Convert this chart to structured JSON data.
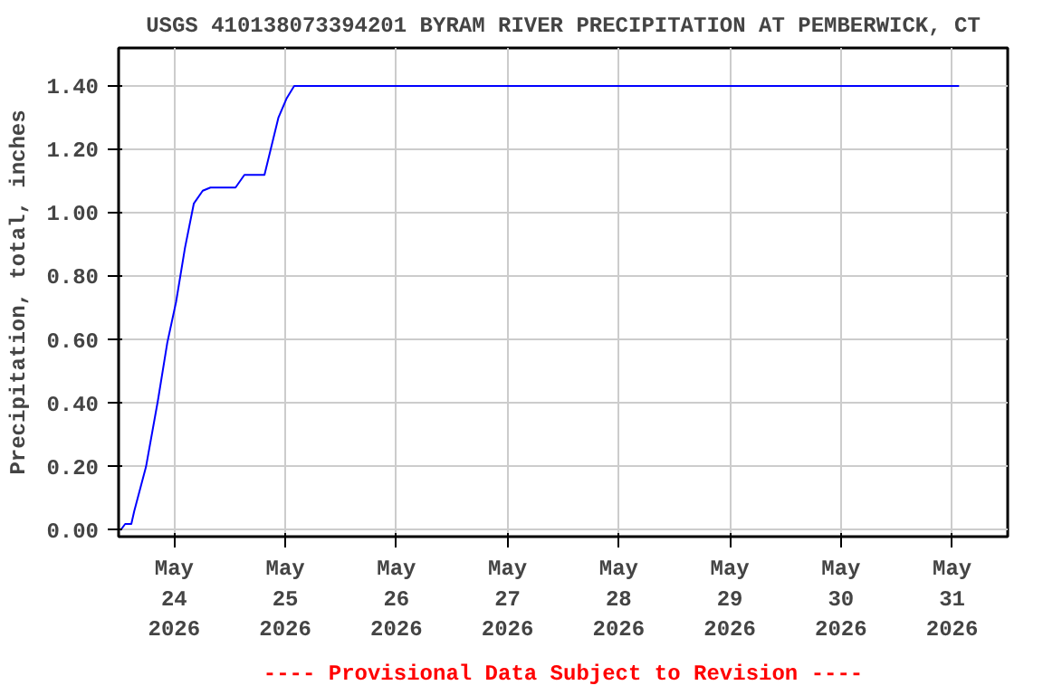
{
  "chart_data": {
    "type": "line",
    "title": "USGS 410138073394201 BYRAM RIVER PRECIPITATION AT PEMBERWICK, CT",
    "ylabel": "Precipitation, total, inches",
    "annotations": [
      "---- Provisional Data Subject to Revision ----"
    ],
    "series": [
      {
        "color": "#0000ff",
        "x": [
          "2026-05-23T12:24",
          "2026-05-23T13:25",
          "2026-05-23T14:45",
          "2026-05-23T15:22",
          "2026-05-23T17:55",
          "2026-05-23T20:30",
          "2026-05-23T22:30",
          "2026-05-24T00:25",
          "2026-05-24T02:20",
          "2026-05-24T04:15",
          "2026-05-24T06:10",
          "2026-05-24T07:50",
          "2026-05-24T13:15",
          "2026-05-24T15:10",
          "2026-05-24T19:30",
          "2026-05-24T21:00",
          "2026-05-24T22:30",
          "2026-05-25T00:15",
          "2026-05-25T01:55",
          "2026-05-31T01:30"
        ],
        "values": [
          0.0,
          0.02,
          0.02,
          0.06,
          0.2,
          0.41,
          0.59,
          0.72,
          0.89,
          1.03,
          1.07,
          1.08,
          1.08,
          1.12,
          1.12,
          1.21,
          1.3,
          1.36,
          1.4,
          1.4
        ]
      }
    ],
    "xlim": [
      "2026-05-23T12:00",
      "2026-05-31T12:00"
    ],
    "xticks": [
      {
        "value": "2026-05-24",
        "label": "May\n24\n2026"
      },
      {
        "value": "2026-05-25",
        "label": "May\n25\n2026"
      },
      {
        "value": "2026-05-26",
        "label": "May\n26\n2026"
      },
      {
        "value": "2026-05-27",
        "label": "May\n27\n2026"
      },
      {
        "value": "2026-05-28",
        "label": "May\n28\n2026"
      },
      {
        "value": "2026-05-29",
        "label": "May\n29\n2026"
      },
      {
        "value": "2026-05-30",
        "label": "May\n30\n2026"
      },
      {
        "value": "2026-05-31",
        "label": "May\n31\n2026"
      }
    ],
    "ylim": [
      -0.02,
      1.52
    ],
    "yticks": [
      {
        "value": 0,
        "label": "0.00"
      },
      {
        "value": 0.2,
        "label": "0.20"
      },
      {
        "value": 0.4,
        "label": "0.40"
      },
      {
        "value": 0.6,
        "label": "0.60"
      },
      {
        "value": 0.8,
        "label": "0.80"
      },
      {
        "value": 1.0,
        "label": "1.00"
      },
      {
        "value": 1.2,
        "label": "1.20"
      },
      {
        "value": 1.4,
        "label": "1.40"
      }
    ],
    "grid": true,
    "marker": "none",
    "line_style": "solid"
  }
}
